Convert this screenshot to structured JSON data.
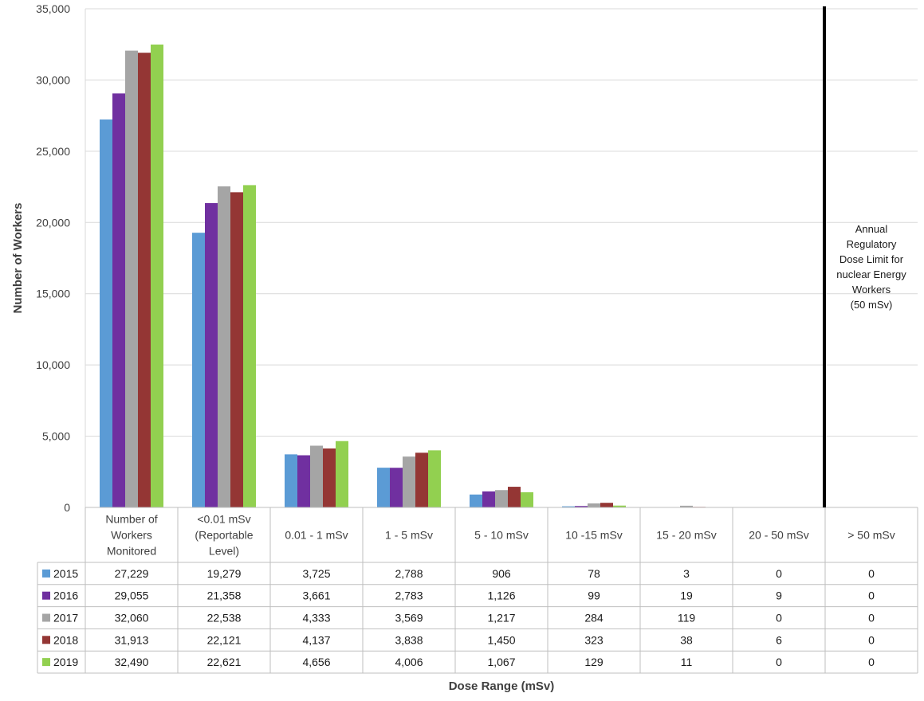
{
  "chart_data": {
    "type": "bar",
    "ylabel": "Number of Workers",
    "xlabel": "Dose Range (mSv)",
    "ylim": [
      0,
      35000
    ],
    "yticks": [
      "0",
      "5,000",
      "10,000",
      "15,000",
      "20,000",
      "25,000",
      "30,000",
      "35,000"
    ],
    "grid": true,
    "legend_placement": "data-table rows",
    "categories": [
      [
        "Number of",
        "Workers",
        "Monitored"
      ],
      [
        "<0.01 mSv",
        "(Reportable",
        "Level)"
      ],
      [
        "0.01 - 1 mSv"
      ],
      [
        "1 - 5 mSv"
      ],
      [
        "5 - 10 mSv"
      ],
      [
        "10 -15 mSv"
      ],
      [
        "15 - 20 mSv"
      ],
      [
        "20 - 50 mSv"
      ],
      [
        "> 50 mSv"
      ]
    ],
    "series": [
      {
        "name": "2015",
        "color": "#5b9bd5",
        "values": [
          27229,
          19279,
          3725,
          2788,
          906,
          78,
          3,
          0,
          0
        ],
        "labels": [
          "27,229",
          "19,279",
          "3,725",
          "2,788",
          "906",
          "78",
          "3",
          "0",
          "0"
        ]
      },
      {
        "name": "2016",
        "color": "#7030a0",
        "values": [
          29055,
          21358,
          3661,
          2783,
          1126,
          99,
          19,
          9,
          0
        ],
        "labels": [
          "29,055",
          "21,358",
          "3,661",
          "2,783",
          "1,126",
          "99",
          "19",
          "9",
          "0"
        ]
      },
      {
        "name": "2017",
        "color": "#a5a5a5",
        "values": [
          32060,
          22538,
          4333,
          3569,
          1217,
          284,
          119,
          0,
          0
        ],
        "labels": [
          "32,060",
          "22,538",
          "4,333",
          "3,569",
          "1,217",
          "284",
          "119",
          "0",
          "0"
        ]
      },
      {
        "name": "2018",
        "color": "#943634",
        "values": [
          31913,
          22121,
          4137,
          3838,
          1450,
          323,
          38,
          6,
          0
        ],
        "labels": [
          "31,913",
          "22,121",
          "4,137",
          "3,838",
          "1,450",
          "323",
          "38",
          "6",
          "0"
        ]
      },
      {
        "name": "2019",
        "color": "#92d050",
        "values": [
          32490,
          22621,
          4656,
          4006,
          1067,
          129,
          11,
          0,
          0
        ],
        "labels": [
          "32,490",
          "22,621",
          "4,656",
          "4,006",
          "1,067",
          "129",
          "11",
          "0",
          "0"
        ]
      }
    ],
    "annotation": {
      "lines": [
        "Annual",
        "Regulatory",
        "Dose Limit for",
        "nuclear Energy",
        "Workers",
        "(50 mSv)"
      ],
      "position": "between 20 - 50 mSv and > 50 mSv"
    }
  }
}
